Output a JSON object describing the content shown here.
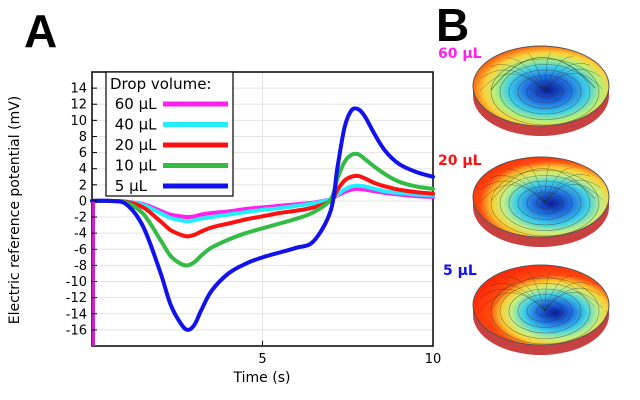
{
  "panels": {
    "a_label": "A",
    "b_label": "B"
  },
  "chart_data": {
    "type": "line",
    "title": "",
    "xlabel": "Time (s)",
    "ylabel": "Electric reference potential (mV)",
    "xlim": [
      0,
      10
    ],
    "ylim": [
      -18,
      16
    ],
    "x_ticks": [
      5,
      10
    ],
    "y_ticks": [
      14,
      12,
      10,
      8,
      6,
      4,
      2,
      0,
      -2,
      -4,
      -6,
      -8,
      -10,
      -12,
      -14,
      -16
    ],
    "grid": true,
    "legend": {
      "title": "Drop volume:",
      "position": "top-left"
    },
    "x": [
      0,
      0.5,
      1,
      1.5,
      2,
      2.3,
      2.6,
      2.8,
      3,
      3.2,
      3.5,
      4,
      4.5,
      5,
      5.5,
      6,
      6.5,
      7,
      7.2,
      7.4,
      7.6,
      7.8,
      8,
      8.3,
      8.6,
      9,
      9.5,
      10
    ],
    "series": [
      {
        "name": "60 µL",
        "color": "#ff22ee",
        "values": [
          0,
          0,
          -0.1,
          -0.4,
          -1.2,
          -1.7,
          -1.9,
          -2.0,
          -1.9,
          -1.7,
          -1.5,
          -1.3,
          -1.0,
          -0.8,
          -0.6,
          -0.4,
          -0.2,
          0.2,
          0.7,
          1.1,
          1.4,
          1.5,
          1.4,
          1.2,
          1.0,
          0.8,
          0.6,
          0.5
        ]
      },
      {
        "name": "40 µL",
        "color": "#22eeff",
        "values": [
          0,
          0,
          -0.1,
          -0.5,
          -1.5,
          -2.1,
          -2.4,
          -2.5,
          -2.4,
          -2.2,
          -2.0,
          -1.7,
          -1.4,
          -1.1,
          -0.9,
          -0.6,
          -0.3,
          0.2,
          0.8,
          1.4,
          1.8,
          1.9,
          1.8,
          1.5,
          1.2,
          1.0,
          0.8,
          0.7
        ]
      },
      {
        "name": "20 µL",
        "color": "#ff1111",
        "values": [
          0,
          0,
          -0.1,
          -0.8,
          -2.5,
          -3.6,
          -4.2,
          -4.4,
          -4.2,
          -3.8,
          -3.3,
          -2.8,
          -2.3,
          -1.9,
          -1.5,
          -1.2,
          -0.8,
          0,
          1.4,
          2.5,
          3.0,
          3.1,
          2.8,
          2.2,
          1.8,
          1.4,
          1.1,
          0.9
        ]
      },
      {
        "name": "10 µL",
        "color": "#33bb44",
        "values": [
          0,
          0,
          -0.2,
          -1.6,
          -4.8,
          -6.8,
          -7.8,
          -8.0,
          -7.6,
          -6.8,
          -5.8,
          -4.8,
          -4.0,
          -3.4,
          -2.8,
          -2.2,
          -1.4,
          0.2,
          2.8,
          4.8,
          5.7,
          5.8,
          5.2,
          4.2,
          3.3,
          2.4,
          1.8,
          1.5
        ]
      },
      {
        "name": "5 µL",
        "color": "#1111ee",
        "values": [
          0,
          0,
          -0.4,
          -3.2,
          -8.8,
          -12.8,
          -15.2,
          -16.0,
          -15.4,
          -13.6,
          -11.2,
          -9.0,
          -7.8,
          -7.0,
          -6.4,
          -5.8,
          -5.0,
          -1.2,
          4.2,
          9.0,
          11.2,
          11.4,
          10.5,
          8.2,
          6.2,
          4.6,
          3.6,
          3.0
        ]
      }
    ],
    "left_edge_artifact_color": "#cc22cc"
  },
  "simulations": [
    {
      "label": "60 µL",
      "color": "#ff22ee"
    },
    {
      "label": "20 µL",
      "color": "#ff1111"
    },
    {
      "label": "5 µL",
      "color": "#1111ee"
    }
  ]
}
